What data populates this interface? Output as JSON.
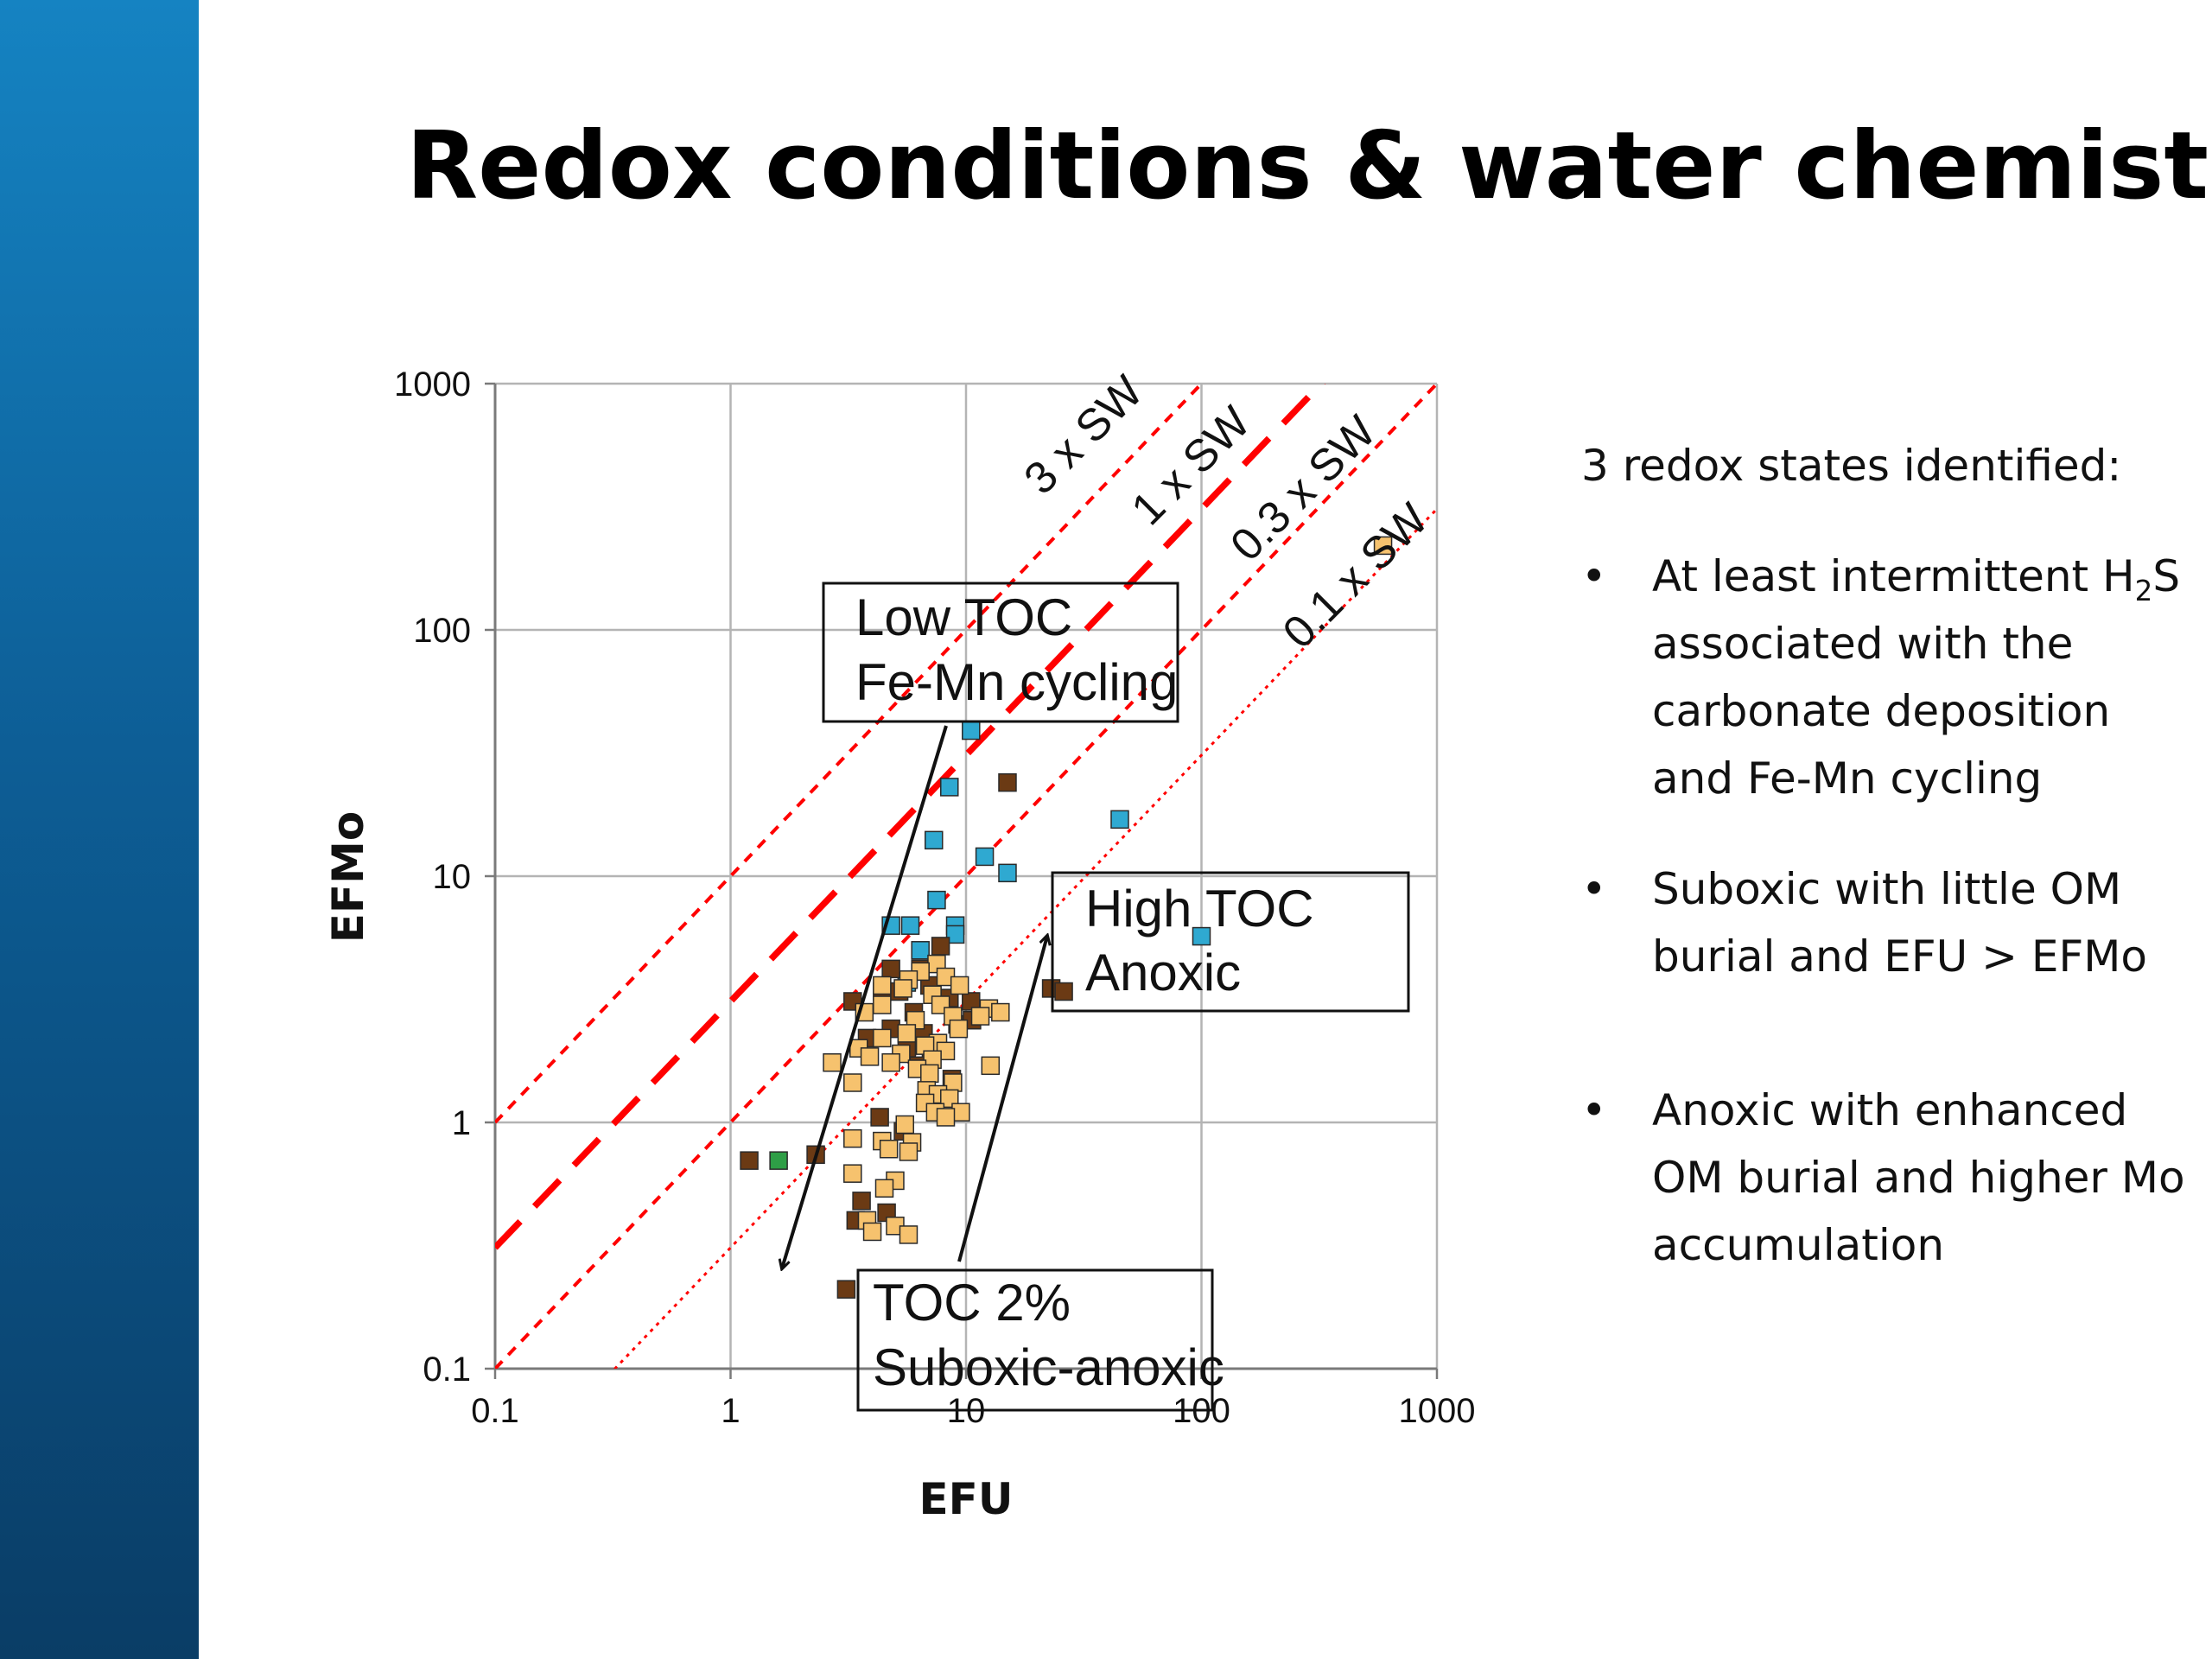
{
  "slide": {
    "title": "Redox conditions & water chemistry",
    "intro": "3 redox states identified:",
    "bullets": [
      {
        "before": "At least intermittent H",
        "sub": "2",
        "after": "S associated with the carbonate deposition and Fe-Mn cycling"
      },
      {
        "before": "Suboxic with little OM burial and EFU > EFMo",
        "sub": "",
        "after": ""
      },
      {
        "before": "Anoxic with enhanced OM burial and higher Mo accumulation",
        "sub": "",
        "after": ""
      }
    ]
  },
  "colors": {
    "band": "#0d5e96",
    "seawater_lines": "#ff0000",
    "blue": "#2fa9d1",
    "brown": "#6b3a14",
    "light": "#f6c26e",
    "green": "#2e9e46"
  },
  "chart_data": {
    "type": "scatter",
    "xlabel": "EFU",
    "ylabel": "EFMo",
    "x_scale": "log",
    "y_scale": "log",
    "xlim": [
      0.1,
      1000
    ],
    "ylim": [
      0.1,
      1000
    ],
    "x_ticks": [
      "0.1",
      "1",
      "10",
      "100",
      "1000"
    ],
    "y_ticks": [
      "0.1",
      "1",
      "10",
      "100",
      "1000"
    ],
    "grid": true,
    "reference_lines": [
      {
        "label": "3 x SW",
        "ratio": 10,
        "style": "dashed"
      },
      {
        "label": "1 x SW",
        "ratio": 3.1,
        "style": "thick-dashed"
      },
      {
        "label": "0.3 x SW",
        "ratio": 1,
        "style": "dashed"
      },
      {
        "label": "0.1 x SW",
        "ratio": 0.31,
        "style": "dotted"
      }
    ],
    "annotations": [
      {
        "lines": [
          "Low TOC",
          "Fe-Mn cycling"
        ]
      },
      {
        "lines": [
          "High TOC",
          "Anoxic"
        ]
      },
      {
        "lines": [
          "TOC 2%",
          "Suboxic-anoxic"
        ]
      }
    ],
    "series": [
      {
        "color": "#2fa9d1",
        "points": [
          [
            10.5,
            39
          ],
          [
            8.5,
            23
          ],
          [
            7.3,
            14
          ],
          [
            12,
            12
          ],
          [
            15,
            10.3
          ],
          [
            7.5,
            8
          ],
          [
            4.8,
            6.3
          ],
          [
            5.8,
            6.3
          ],
          [
            9,
            6.3
          ],
          [
            9,
            5.8
          ],
          [
            6.4,
            5
          ],
          [
            5.6,
            3.7
          ],
          [
            45,
            17
          ],
          [
            100,
            5.7
          ]
        ]
      },
      {
        "color": "#6b3a14",
        "points": [
          [
            15,
            24
          ],
          [
            7.8,
            5.2
          ],
          [
            4.8,
            4.2
          ],
          [
            6.4,
            4.2
          ],
          [
            5.2,
            3.4
          ],
          [
            7,
            3.6
          ],
          [
            8.5,
            3.2
          ],
          [
            4.4,
            3.4
          ],
          [
            10.5,
            3.1
          ],
          [
            3.3,
            3.1
          ],
          [
            6,
            2.8
          ],
          [
            9.2,
            2.5
          ],
          [
            4.8,
            2.4
          ],
          [
            6.6,
            2.3
          ],
          [
            3.8,
            2.2
          ],
          [
            5.6,
            2
          ],
          [
            7.1,
            1.9
          ],
          [
            6.3,
            1.7
          ],
          [
            8.7,
            1.5
          ],
          [
            23,
            3.5
          ],
          [
            26,
            3.4
          ],
          [
            4.3,
            1.05
          ],
          [
            5.4,
            0.92
          ],
          [
            3.6,
            0.48
          ],
          [
            4.6,
            0.43
          ],
          [
            1.2,
            0.7
          ],
          [
            2.3,
            0.74
          ],
          [
            3.1,
            0.21
          ],
          [
            3.4,
            0.4
          ],
          [
            10.6,
            2.6
          ]
        ]
      },
      {
        "color": "#f6c26e",
        "points": [
          [
            590,
            220
          ],
          [
            7.5,
            4.4
          ],
          [
            6.4,
            4.1
          ],
          [
            8.2,
            3.9
          ],
          [
            5.7,
            3.8
          ],
          [
            4.4,
            3.6
          ],
          [
            9.4,
            3.6
          ],
          [
            5.4,
            3.5
          ],
          [
            7.2,
            3.3
          ],
          [
            4.4,
            3
          ],
          [
            7.8,
            3
          ],
          [
            12.5,
            2.9
          ],
          [
            3.7,
            2.8
          ],
          [
            8.8,
            2.7
          ],
          [
            11.5,
            2.7
          ],
          [
            14,
            2.8
          ],
          [
            6.1,
            2.6
          ],
          [
            9.3,
            2.4
          ],
          [
            5.6,
            2.3
          ],
          [
            4.4,
            2.2
          ],
          [
            7.6,
            2.1
          ],
          [
            3.5,
            2
          ],
          [
            6.7,
            2.05
          ],
          [
            8.2,
            1.95
          ],
          [
            5.3,
            1.9
          ],
          [
            3.9,
            1.85
          ],
          [
            7.2,
            1.8
          ],
          [
            2.7,
            1.75
          ],
          [
            4.8,
            1.75
          ],
          [
            6.2,
            1.65
          ],
          [
            12.7,
            1.7
          ],
          [
            7,
            1.58
          ],
          [
            8.8,
            1.45
          ],
          [
            3.3,
            1.45
          ],
          [
            6.8,
            1.35
          ],
          [
            7.6,
            1.3
          ],
          [
            8.5,
            1.25
          ],
          [
            6.7,
            1.2
          ],
          [
            7.4,
            1.1
          ],
          [
            9.5,
            1.1
          ],
          [
            8.2,
            1.05
          ],
          [
            5.5,
            0.98
          ],
          [
            3.3,
            0.86
          ],
          [
            4.4,
            0.84
          ],
          [
            5.9,
            0.83
          ],
          [
            4.7,
            0.78
          ],
          [
            5.7,
            0.76
          ],
          [
            3.3,
            0.62
          ],
          [
            5,
            0.58
          ],
          [
            4.5,
            0.54
          ],
          [
            3.8,
            0.4
          ],
          [
            5,
            0.38
          ],
          [
            4,
            0.36
          ],
          [
            5.7,
            0.35
          ]
        ]
      },
      {
        "color": "#2e9e46",
        "points": [
          [
            1.6,
            0.7
          ]
        ]
      }
    ]
  }
}
